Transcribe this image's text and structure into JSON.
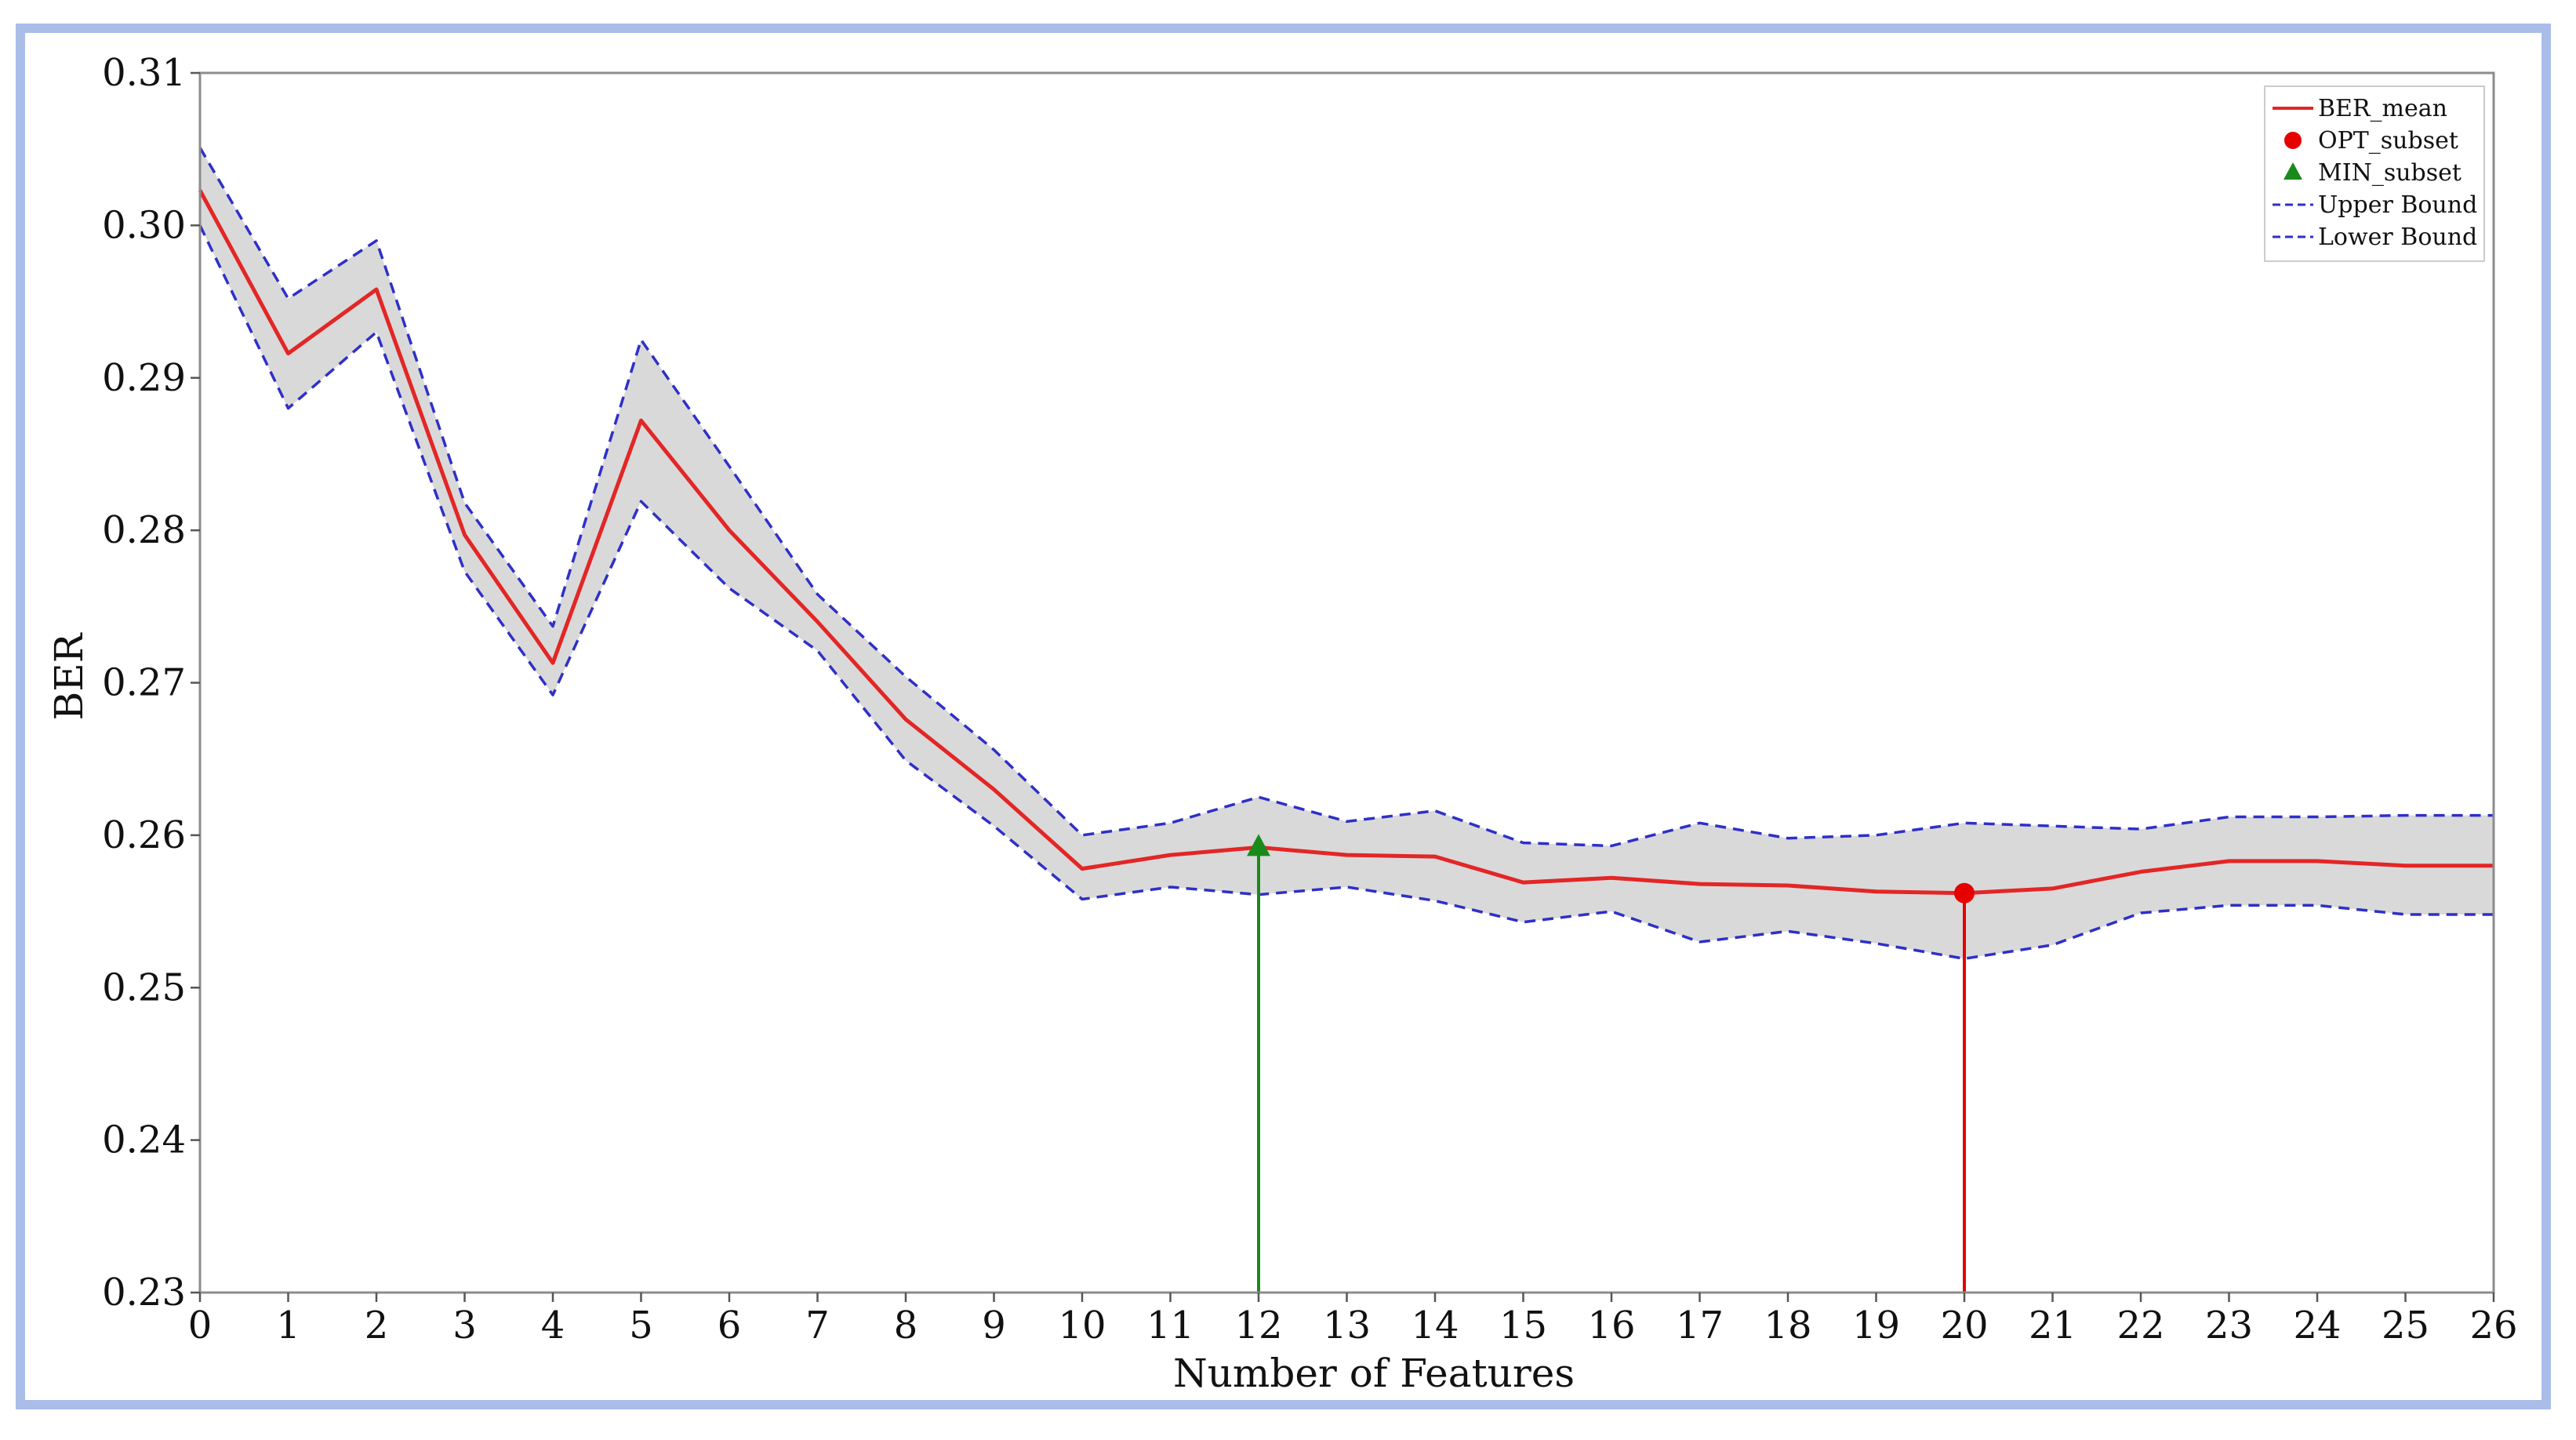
{
  "chart_data": {
    "type": "line",
    "title": "",
    "xlabel": "Number of Features",
    "ylabel": "BER",
    "xlim": [
      0,
      26
    ],
    "ylim": [
      0.23,
      0.31
    ],
    "x_ticks": [
      0,
      1,
      2,
      3,
      4,
      5,
      6,
      7,
      8,
      9,
      10,
      11,
      12,
      13,
      14,
      15,
      16,
      17,
      18,
      19,
      20,
      21,
      22,
      23,
      24,
      25,
      26
    ],
    "y_ticks": [
      0.23,
      0.24,
      0.25,
      0.26,
      0.27,
      0.28,
      0.29,
      0.3,
      0.31
    ],
    "y_tick_labels": [
      "0.23",
      "0.24",
      "0.25",
      "0.26",
      "0.27",
      "0.28",
      "0.29",
      "0.30",
      "0.31"
    ],
    "grid": false,
    "legend_position": "top-right",
    "x": [
      0,
      1,
      2,
      3,
      4,
      5,
      6,
      7,
      8,
      9,
      10,
      11,
      12,
      13,
      14,
      15,
      16,
      17,
      18,
      19,
      20,
      21,
      22,
      23,
      24,
      25,
      26
    ],
    "series": [
      {
        "name": "BER_mean",
        "style": "solid",
        "color": "#e32626",
        "values": [
          0.3023,
          0.2916,
          0.2958,
          0.2797,
          0.2713,
          0.2872,
          0.28,
          0.274,
          0.2676,
          0.263,
          0.2578,
          0.2587,
          0.2592,
          0.2587,
          0.2586,
          0.2569,
          0.2572,
          0.2568,
          0.2567,
          0.2563,
          0.2562,
          0.2565,
          0.2576,
          0.2583,
          0.2583,
          0.258,
          0.258
        ]
      },
      {
        "name": "Upper Bound",
        "style": "dashed",
        "color": "#2f2fc8",
        "values": [
          0.3051,
          0.2952,
          0.299,
          0.2818,
          0.2737,
          0.2925,
          0.2842,
          0.2758,
          0.2704,
          0.2656,
          0.26,
          0.2608,
          0.2625,
          0.2609,
          0.2616,
          0.2595,
          0.2593,
          0.2608,
          0.2598,
          0.26,
          0.2608,
          0.2606,
          0.2604,
          0.2612,
          0.2612,
          0.2613,
          0.2613
        ]
      },
      {
        "name": "Lower Bound",
        "style": "dashed",
        "color": "#2f2fc8",
        "values": [
          0.3,
          0.288,
          0.293,
          0.2773,
          0.2692,
          0.2819,
          0.2762,
          0.2721,
          0.2649,
          0.2606,
          0.2558,
          0.2566,
          0.2561,
          0.2566,
          0.2557,
          0.2543,
          0.255,
          0.253,
          0.2537,
          0.2529,
          0.2519,
          0.2528,
          0.2549,
          0.2554,
          0.2554,
          0.2548,
          0.2548
        ]
      }
    ],
    "markers": [
      {
        "name": "OPT_subset",
        "shape": "circle",
        "color": "#e60000",
        "x": 20,
        "y": 0.2562
      },
      {
        "name": "MIN_subset",
        "shape": "triangle",
        "color": "#1a8a1a",
        "x": 12,
        "y": 0.2592
      }
    ],
    "legend": [
      {
        "label": "BER_mean",
        "kind": "line",
        "color": "#e32626"
      },
      {
        "label": "OPT_subset",
        "kind": "circle",
        "color": "#e60000"
      },
      {
        "label": "MIN_subset",
        "kind": "triangle",
        "color": "#1a8a1a"
      },
      {
        "label": "Upper Bound",
        "kind": "dashed",
        "color": "#2f2fc8"
      },
      {
        "label": "Lower Bound",
        "kind": "dashed",
        "color": "#2f2fc8"
      }
    ],
    "band_color": "#d9d9d9"
  }
}
